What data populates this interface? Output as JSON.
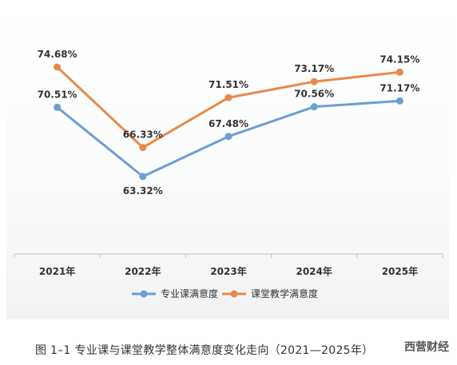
{
  "chart_data": {
    "type": "line",
    "categories": [
      "2021年",
      "2022年",
      "2023年",
      "2024年",
      "2025年"
    ],
    "series": [
      {
        "name": "专业课满意度",
        "values": [
          70.51,
          63.32,
          67.48,
          70.56,
          71.17
        ],
        "color": "#6a9fd5",
        "labels": [
          "70.51%",
          "63.32%",
          "67.48%",
          "70.56%",
          "71.17%"
        ]
      },
      {
        "name": "课堂教学满意度",
        "values": [
          74.68,
          66.33,
          71.51,
          73.17,
          74.15
        ],
        "color": "#e8894a",
        "labels": [
          "74.68%",
          "66.33%",
          "71.51%",
          "73.17%",
          "74.15%"
        ]
      }
    ],
    "ylim": [
      55,
      78
    ],
    "grid": false,
    "legend": "bottom"
  },
  "caption": "图 1–1  专业课与课堂教学整体满意度变化走向（2021—2025年）",
  "watermark_text": "西营财经"
}
